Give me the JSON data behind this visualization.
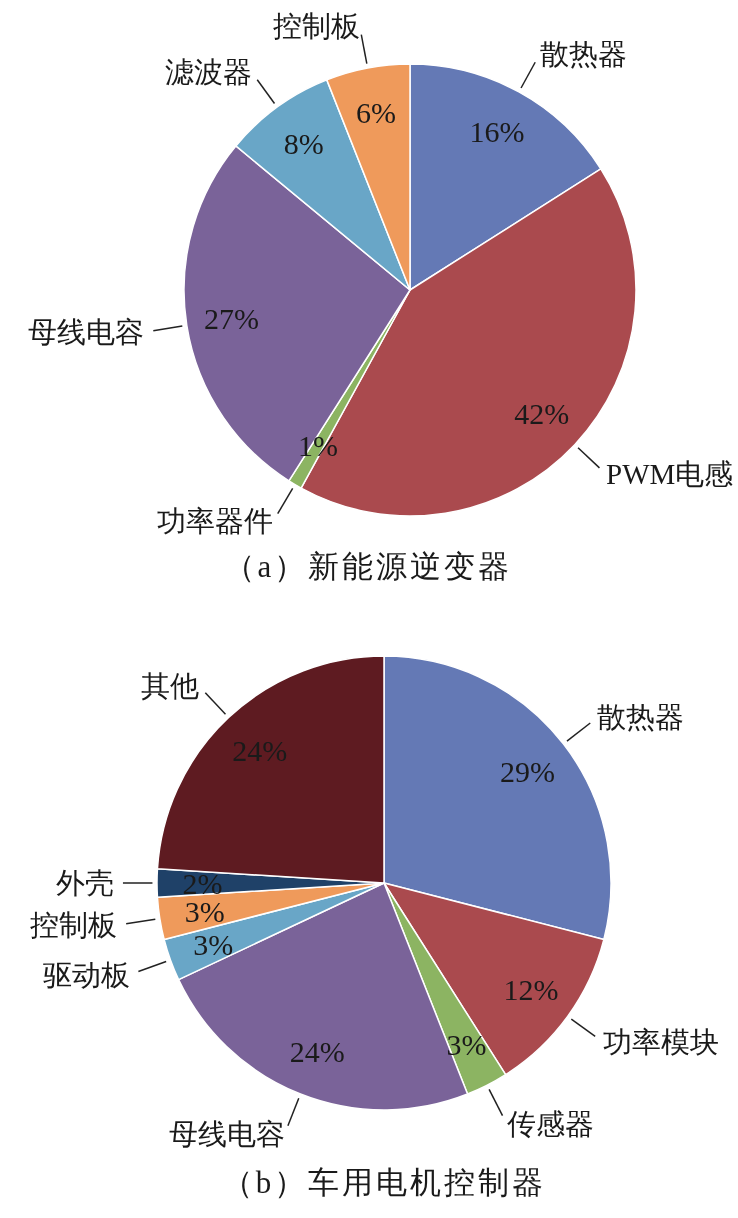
{
  "chart_data": [
    {
      "type": "pie",
      "title": "（a）新能源逆变器",
      "categories": [
        "散热器",
        "PWM电感",
        "功率器件",
        "母线电容",
        "滤波器",
        "控制板"
      ],
      "values": [
        16,
        42,
        1,
        27,
        8,
        6
      ],
      "colors": [
        "#6479b5",
        "#aa4a4e",
        "#8cb462",
        "#7a6399",
        "#69a6c7",
        "#ef9a5b"
      ],
      "value_labels": [
        "16%",
        "42%",
        "1%",
        "27%",
        "8%",
        "6%"
      ]
    },
    {
      "type": "pie",
      "title": "（b）车用电机控制器",
      "categories": [
        "散热器",
        "功率模块",
        "传感器",
        "母线电容",
        "驱动板",
        "控制板",
        "外壳",
        "其他"
      ],
      "values": [
        29,
        12,
        3,
        24,
        3,
        3,
        2,
        24
      ],
      "colors": [
        "#6479b5",
        "#aa4a4e",
        "#8cb462",
        "#7a6399",
        "#69a6c7",
        "#ef9a5b",
        "#1f4168",
        "#5e1b21"
      ],
      "value_labels": [
        "29%",
        "12%",
        "3%",
        "24%",
        "3%",
        "3%",
        "2%",
        "24%"
      ]
    }
  ]
}
